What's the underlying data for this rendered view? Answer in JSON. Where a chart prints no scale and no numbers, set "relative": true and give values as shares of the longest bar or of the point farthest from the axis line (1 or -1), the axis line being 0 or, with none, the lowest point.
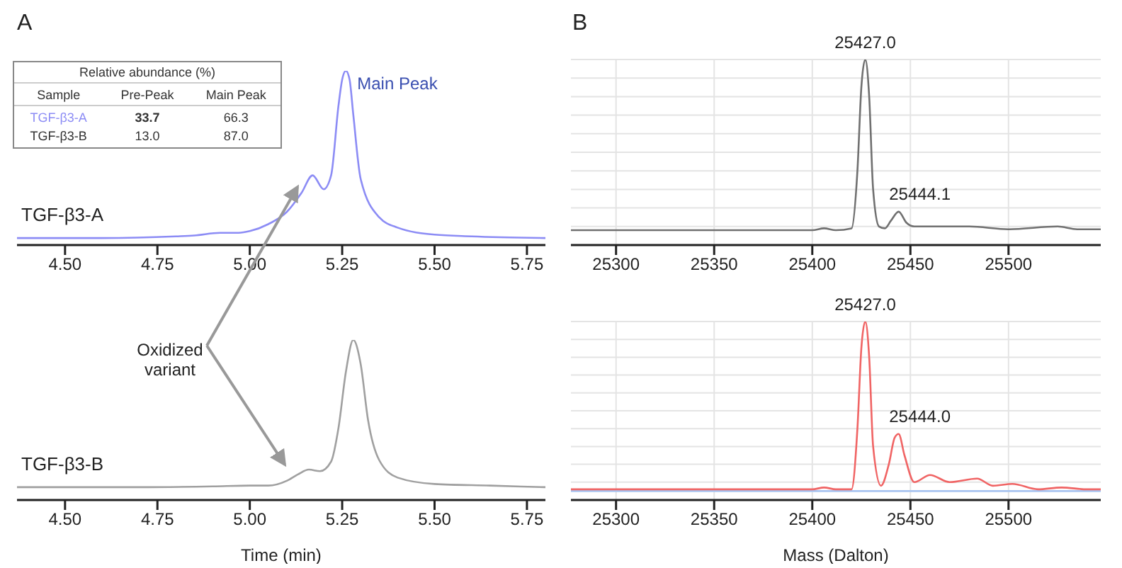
{
  "chart_data": [
    {
      "type": "line",
      "title": "A",
      "relative": true,
      "marker": "none",
      "xlim": [
        4.37,
        5.8
      ],
      "xticks": [
        {
          "value": 4.5,
          "label": "4.50"
        },
        {
          "value": 4.75,
          "label": "4.75"
        },
        {
          "value": 5.0,
          "label": "5.00"
        },
        {
          "value": 5.25,
          "label": "5.25"
        },
        {
          "value": 5.5,
          "label": "5.50"
        },
        {
          "value": 5.75,
          "label": "5.75"
        }
      ],
      "series": [
        {
          "name": "TGF-β3-A",
          "color": "#8c8cf5",
          "x": [
            4.37,
            4.6,
            4.8,
            4.85,
            4.92,
            4.97,
            5.0,
            5.05,
            5.1,
            5.14,
            5.17,
            5.2,
            5.22,
            5.24,
            5.25,
            5.26,
            5.27,
            5.28,
            5.3,
            5.35,
            5.4,
            5.5,
            5.6,
            5.8
          ],
          "values": [
            0.04,
            0.04,
            0.05,
            0.055,
            0.07,
            0.07,
            0.08,
            0.12,
            0.19,
            0.3,
            0.4,
            0.32,
            0.4,
            0.8,
            0.95,
            1.0,
            0.95,
            0.75,
            0.38,
            0.16,
            0.1,
            0.06,
            0.05,
            0.04
          ]
        }
      ],
      "annotations": [
        "Relative abundance (%)",
        "Sample",
        "Pre-Peak",
        "Main Peak",
        "TGF-β3-A",
        "33.7",
        "66.3",
        "TGF-β3-B",
        "13.0",
        "87.0",
        {
          "text": "Main Peak",
          "x": 5.26,
          "y": 1.0
        }
      ]
    },
    {
      "type": "line",
      "xlabel": "Time (min)",
      "relative": true,
      "marker": "none",
      "xlim": [
        4.37,
        5.8
      ],
      "xticks": [
        {
          "value": 4.5,
          "label": "4.50"
        },
        {
          "value": 4.75,
          "label": "4.75"
        },
        {
          "value": 5.0,
          "label": "5.00"
        },
        {
          "value": 5.25,
          "label": "5.25"
        },
        {
          "value": 5.5,
          "label": "5.50"
        },
        {
          "value": 5.75,
          "label": "5.75"
        }
      ],
      "series": [
        {
          "name": "TGF-β3-B",
          "color": "#a0a0a0",
          "x": [
            4.37,
            4.7,
            4.9,
            5.0,
            5.05,
            5.1,
            5.13,
            5.16,
            5.19,
            5.22,
            5.24,
            5.26,
            5.28,
            5.3,
            5.32,
            5.35,
            5.4,
            5.5,
            5.65,
            5.8
          ],
          "values": [
            0.08,
            0.08,
            0.085,
            0.09,
            0.09,
            0.12,
            0.16,
            0.19,
            0.18,
            0.24,
            0.45,
            0.8,
            1.0,
            0.85,
            0.5,
            0.25,
            0.14,
            0.1,
            0.09,
            0.08
          ]
        }
      ],
      "annotations": [
        "Oxidized variant"
      ]
    },
    {
      "type": "line",
      "title": "B",
      "relative": true,
      "marker": "none",
      "grid": true,
      "xlim": [
        25277,
        25547
      ],
      "xticks": [
        25300,
        25350,
        25400,
        25450,
        25500
      ],
      "series": [
        {
          "color": "#707070",
          "x": [
            25277,
            25400,
            25406,
            25412,
            25420,
            25423,
            25425,
            25427,
            25429,
            25431,
            25434,
            25437,
            25440,
            25444,
            25448,
            25452,
            25470,
            25480,
            25500,
            25525,
            25535,
            25547
          ],
          "values": [
            0.08,
            0.08,
            0.09,
            0.08,
            0.09,
            0.4,
            0.85,
            1.0,
            0.8,
            0.3,
            0.1,
            0.09,
            0.13,
            0.18,
            0.12,
            0.1,
            0.1,
            0.1,
            0.085,
            0.1,
            0.085,
            0.085
          ]
        }
      ],
      "annotations": [
        {
          "text": "25427.0",
          "x": 25427,
          "y": 1.0
        },
        {
          "text": "25444.1",
          "x": 25444,
          "y": 0.18
        }
      ]
    },
    {
      "type": "line",
      "xlabel": "Mass (Dalton)",
      "relative": true,
      "marker": "none",
      "grid": true,
      "xlim": [
        25277,
        25547
      ],
      "xticks": [
        25300,
        25350,
        25400,
        25450,
        25500
      ],
      "series": [
        {
          "color": "#a8c4f0",
          "x": [
            25277,
            25547
          ],
          "values": [
            0.05,
            0.05
          ]
        },
        {
          "color": "#f06464",
          "x": [
            25277,
            25400,
            25406,
            25412,
            25420,
            25423,
            25425,
            25427,
            25429,
            25431,
            25435,
            25439,
            25442,
            25444,
            25447,
            25452,
            25460,
            25470,
            25484,
            25492,
            25502,
            25515,
            25527,
            25540,
            25547
          ],
          "values": [
            0.06,
            0.06,
            0.07,
            0.06,
            0.06,
            0.4,
            0.85,
            1.0,
            0.8,
            0.3,
            0.08,
            0.2,
            0.35,
            0.37,
            0.25,
            0.1,
            0.14,
            0.1,
            0.12,
            0.08,
            0.09,
            0.06,
            0.07,
            0.06,
            0.06
          ]
        }
      ],
      "annotations": [
        {
          "text": "25427.0",
          "x": 25427,
          "y": 1.0
        },
        {
          "text": "25444.0",
          "x": 25444,
          "y": 0.37
        }
      ]
    }
  ]
}
